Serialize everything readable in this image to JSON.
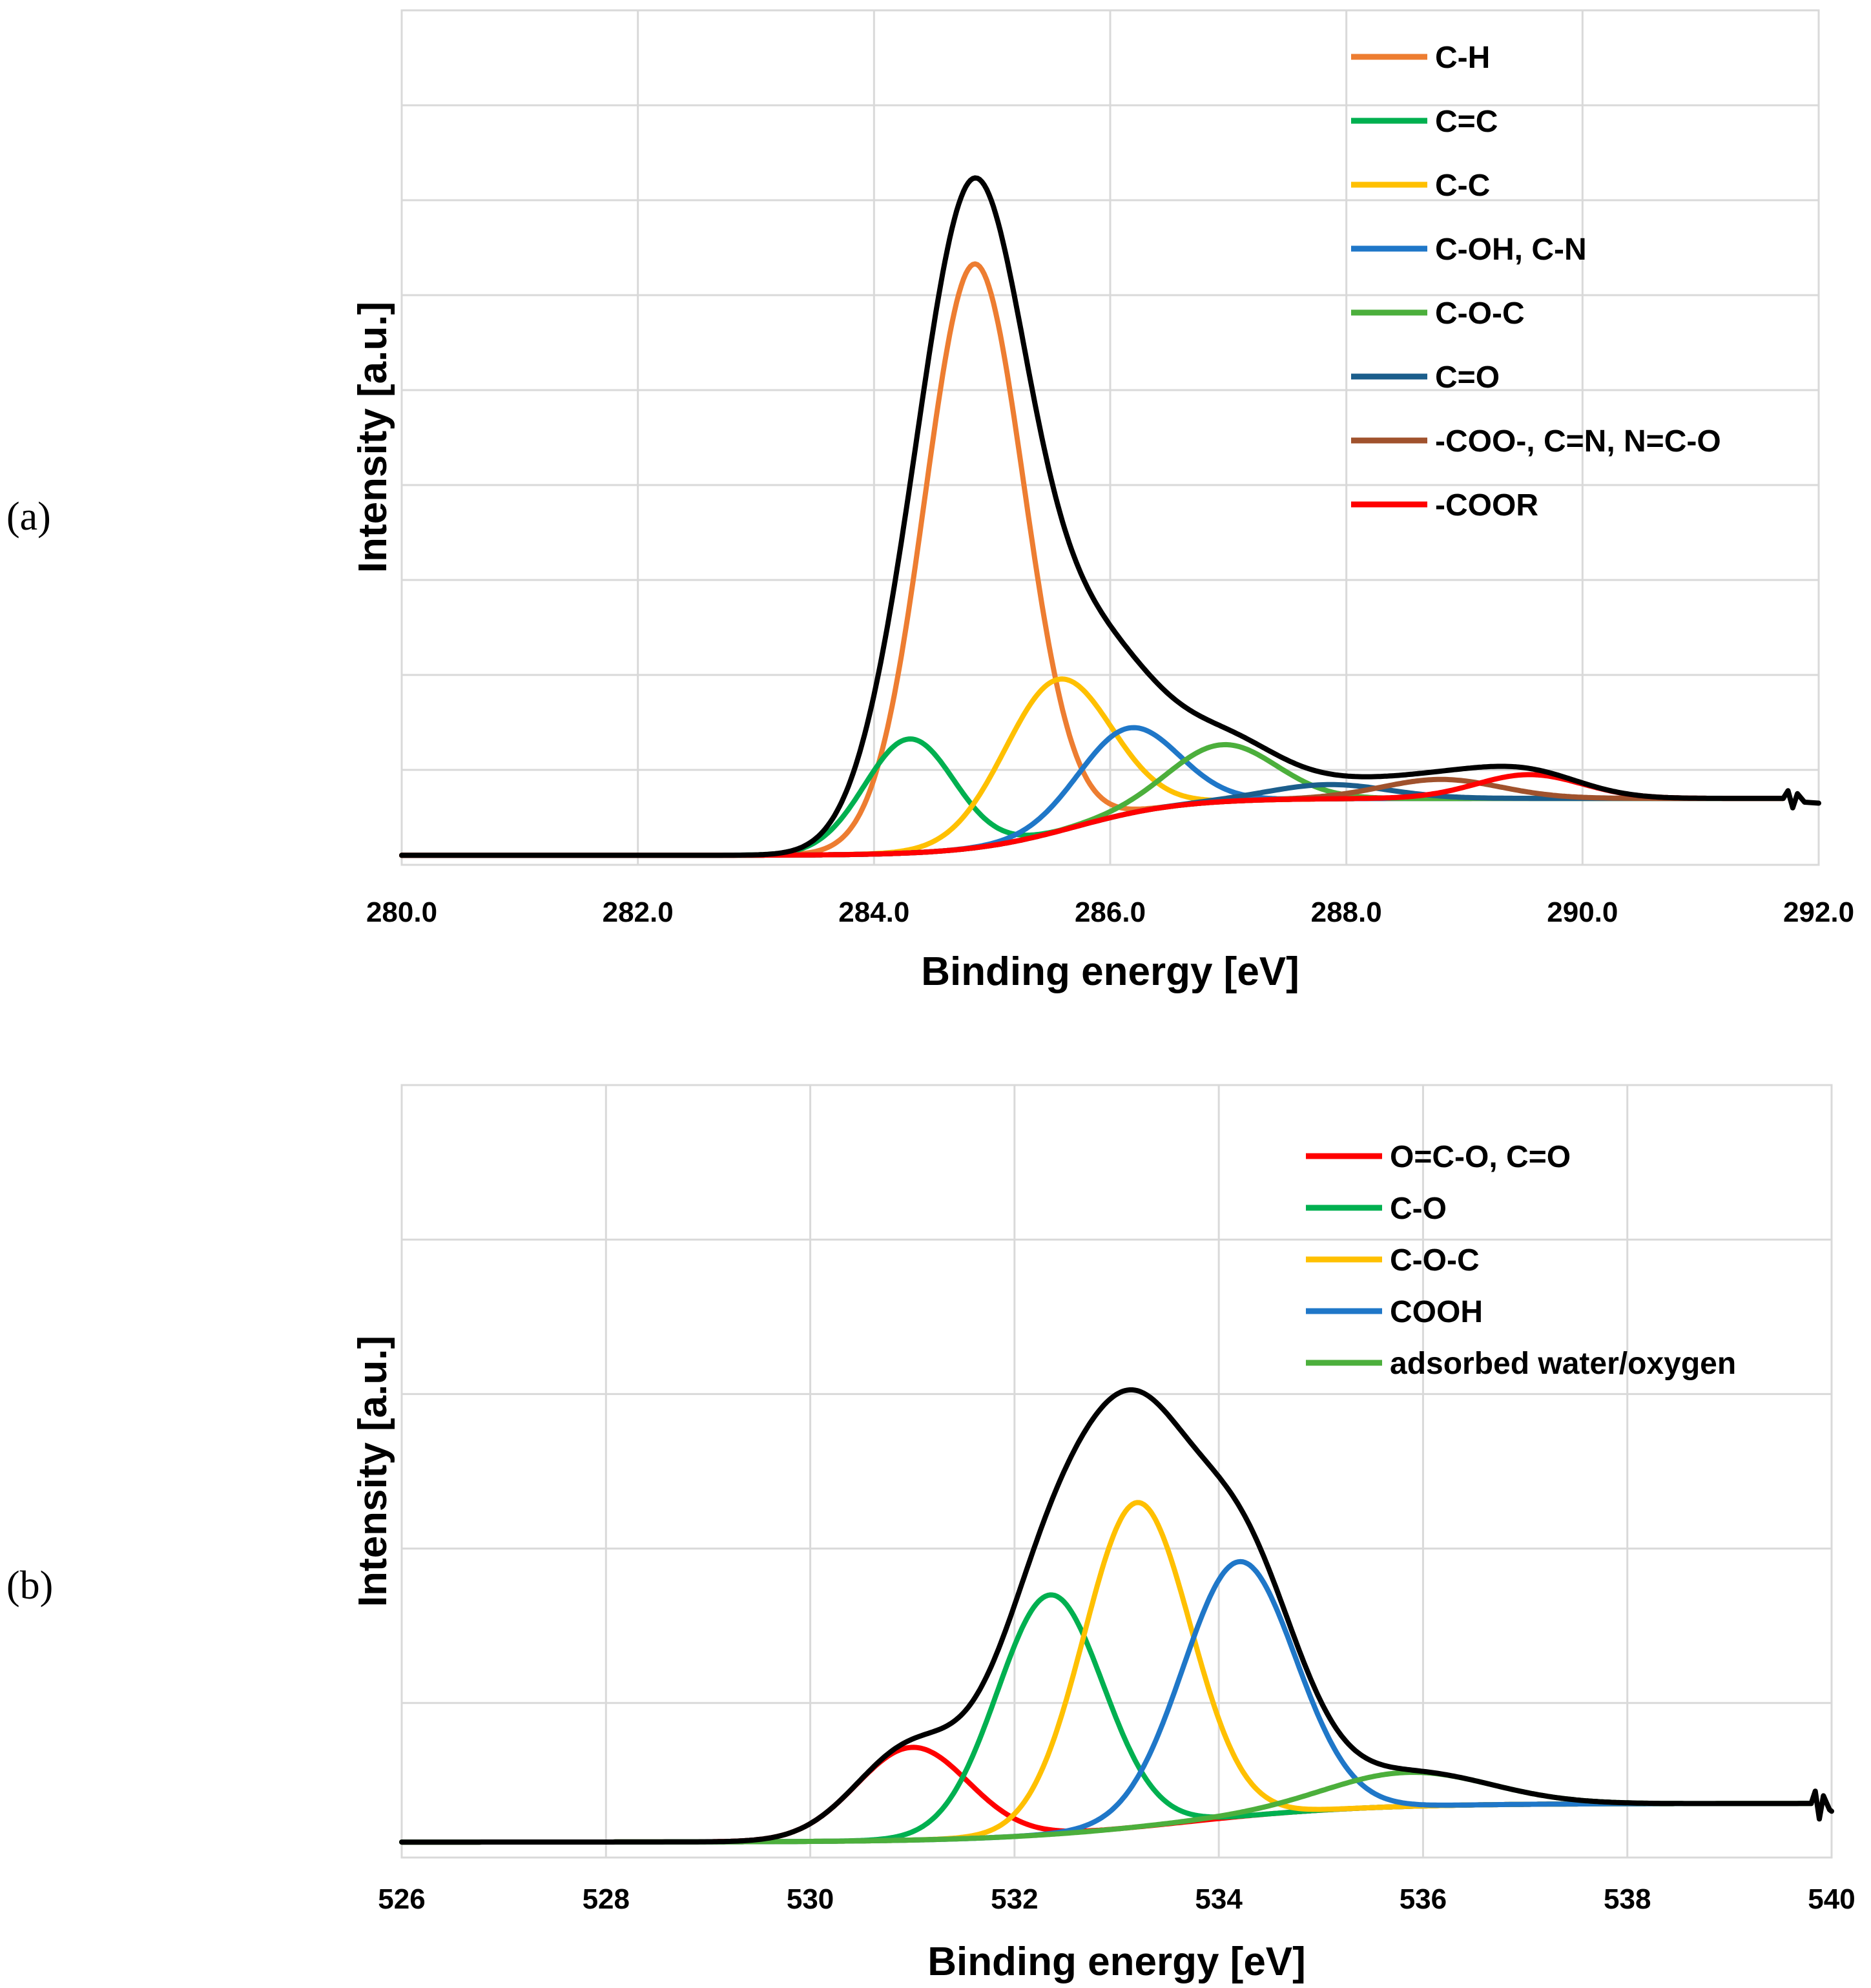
{
  "chart_data": [
    {
      "type": "line",
      "panel_label": "(a)",
      "xlabel": "Binding energy [eV]",
      "ylabel": "Intensity [a.u.]",
      "xlim": [
        280.0,
        292.0
      ],
      "ylim": [
        0,
        9
      ],
      "x_ticks": [
        "280.0",
        "282.0",
        "284.0",
        "286.0",
        "288.0",
        "290.0",
        "292.0"
      ],
      "x_tick_values": [
        280,
        282,
        284,
        286,
        288,
        290,
        292
      ],
      "grid_y_count": 9,
      "legend_position": "top-right",
      "baseline": {
        "y_low": 0.1,
        "y_high": 0.7,
        "center": 285.7,
        "width": 0.45,
        "end": 291.7
      },
      "components": [
        {
          "name": "C-H",
          "color": "#ED7D31",
          "center": 284.85,
          "height": 6.15,
          "sigma": 0.42
        },
        {
          "name": "C=C",
          "color": "#00B050",
          "center": 284.3,
          "height": 1.2,
          "sigma": 0.38
        },
        {
          "name": "C-C",
          "color": "#FFC000",
          "center": 285.55,
          "height": 1.6,
          "sigma": 0.45
        },
        {
          "name": "C-OH, C-N",
          "color": "#1F77C8",
          "center": 286.15,
          "height": 0.9,
          "sigma": 0.42
        },
        {
          "name": "C-O-C",
          "color": "#4CAF3C",
          "center": 286.95,
          "height": 0.6,
          "sigma": 0.45
        },
        {
          "name": "C=O",
          "color": "#1B5E8C",
          "center": 287.85,
          "height": 0.15,
          "sigma": 0.5
        },
        {
          "name": "-COO-, C=N, N=C-O",
          "color": "#A0522D",
          "center": 288.8,
          "height": 0.2,
          "sigma": 0.5
        },
        {
          "name": "-COOR",
          "color": "#FF0000",
          "center": 289.55,
          "height": 0.25,
          "sigma": 0.45
        }
      ]
    },
    {
      "type": "line",
      "panel_label": "(b)",
      "xlabel": "Binding energy [eV]",
      "ylabel": "Intensity [a.u.]",
      "xlim": [
        526,
        540
      ],
      "ylim": [
        0,
        5
      ],
      "x_ticks": [
        "526",
        "528",
        "530",
        "532",
        "534",
        "536",
        "538",
        "540"
      ],
      "x_tick_values": [
        526,
        528,
        530,
        532,
        534,
        536,
        538,
        540
      ],
      "grid_y_count": 5,
      "legend_position": "top-right",
      "baseline": {
        "y_low": 0.1,
        "y_high": 0.35,
        "center": 533.6,
        "width": 0.9,
        "end": 539.8
      },
      "components": [
        {
          "name": "O=C-O, C=O",
          "color": "#FF0000",
          "center": 531.0,
          "height": 0.6,
          "sigma": 0.55
        },
        {
          "name": "C-O",
          "color": "#00B050",
          "center": 532.35,
          "height": 1.55,
          "sigma": 0.52
        },
        {
          "name": "C-O-C",
          "color": "#FFC000",
          "center": 533.2,
          "height": 2.1,
          "sigma": 0.52
        },
        {
          "name": "COOH",
          "color": "#1F77C8",
          "center": 534.2,
          "height": 1.65,
          "sigma": 0.55
        },
        {
          "name": "adsorbed water/oxygen",
          "color": "#4CAF3C",
          "center": 535.85,
          "height": 0.22,
          "sigma": 0.8
        }
      ]
    }
  ]
}
